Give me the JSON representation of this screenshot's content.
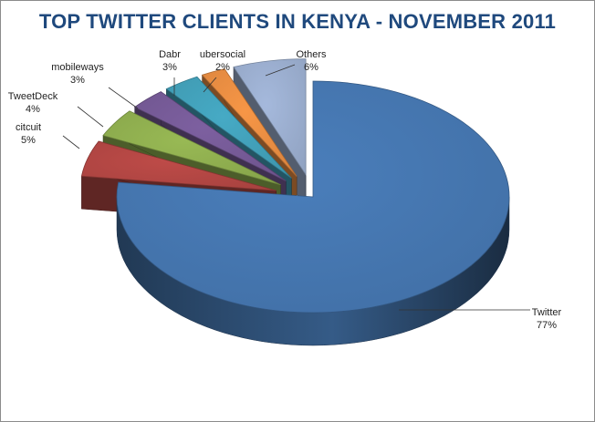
{
  "chart_data": {
    "type": "pie",
    "title": "TOP TWITTER CLIENTS IN KENYA - NOVEMBER 2011",
    "categories": [
      "Twitter",
      "citcuit",
      "TweetDeck",
      "mobileways",
      "Dabr",
      "ubersocial",
      "Others"
    ],
    "values": [
      77,
      5,
      4,
      3,
      3,
      2,
      6
    ],
    "value_labels": [
      "77%",
      "5%",
      "4%",
      "3%",
      "3%",
      "2%",
      "6%"
    ],
    "exploded": true,
    "style": "3d",
    "legend": "none (data labels with leader lines)",
    "colors": [
      "#4a7ebb",
      "#be4b48",
      "#98b954",
      "#7d60a0",
      "#46aac5",
      "#f79646",
      "#a5b9dc"
    ]
  }
}
